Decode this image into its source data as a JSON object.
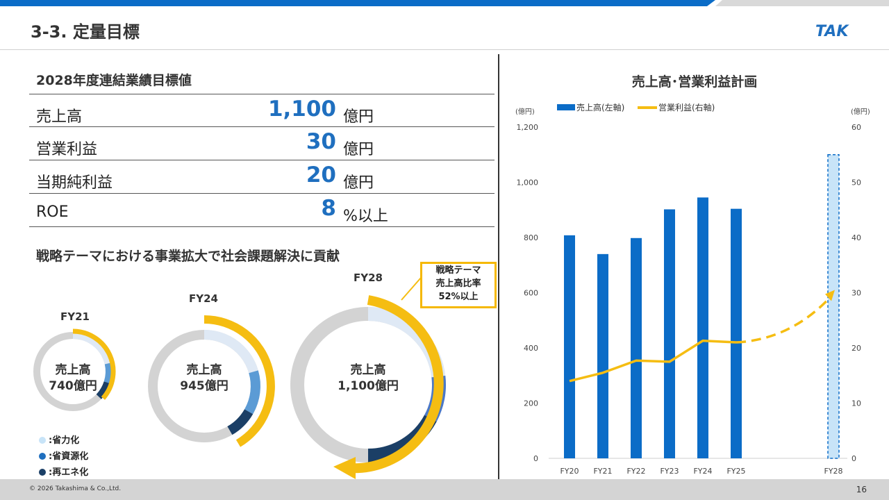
{
  "header": {
    "title": "3-3. 定量目標",
    "logo_text": "TAK"
  },
  "targets": {
    "heading": "2028年度連結業績目標値",
    "rows": [
      {
        "label": "売上高",
        "value": "1,100",
        "unit": "億円"
      },
      {
        "label": "営業利益",
        "value": "30",
        "unit": "億円"
      },
      {
        "label": "当期純利益",
        "value": "20",
        "unit": "億円"
      },
      {
        "label": "ROE",
        "value": "8",
        "unit": "%以上"
      }
    ]
  },
  "themes": {
    "heading": "戦略テーマにおける事業拡大で社会課題解決に貢献",
    "donuts": [
      {
        "year": "FY21",
        "center_line1": "売上高",
        "center_line2": "740億円",
        "revenue": 740
      },
      {
        "year": "FY24",
        "center_line1": "売上高",
        "center_line2": "945億円",
        "revenue": 945
      },
      {
        "year": "FY28",
        "center_line1": "売上高",
        "center_line2": "1,100億円",
        "revenue": 1100
      }
    ],
    "callout": {
      "line1": "戦略テーマ",
      "line2": "売上高比率",
      "line3": "52%以上"
    },
    "legend": [
      {
        "label": ":省力化",
        "color": "#c8e4f8"
      },
      {
        "label": ":省資源化",
        "color": "#1f6fbf"
      },
      {
        "label": ":再エネ化",
        "color": "#1b3f66"
      }
    ]
  },
  "colors": {
    "accent_blue": "#1f6fbf",
    "bar_blue": "#0b6cc7",
    "line_yellow": "#f5bd12",
    "dark_navy": "#1b3f66",
    "light_blue": "#c8e4f8",
    "gray_ring": "#d3d3d3",
    "topbar_blue": "#0b6cc7"
  },
  "chart_data": {
    "type": "bar",
    "title": "売上高･営業利益計画",
    "left_unit": "(億円)",
    "right_unit": "(億円)",
    "categories": [
      "FY20",
      "FY21",
      "FY22",
      "FY23",
      "FY24",
      "FY25",
      "FY28"
    ],
    "ylim_left": [
      0,
      1200
    ],
    "ylim_right": [
      0,
      60
    ],
    "yticks_left": [
      "0",
      "200",
      "400",
      "600",
      "800",
      "1,000",
      "1,200"
    ],
    "yticks_right": [
      "0",
      "10",
      "20",
      "30",
      "40",
      "50",
      "60"
    ],
    "series": [
      {
        "name": "売上高(左軸)",
        "type": "bar",
        "axis": "left",
        "values": [
          808,
          740,
          798,
          902,
          945,
          904,
          1100
        ],
        "plan_from_index": 6
      },
      {
        "name": "営業利益(右軸)",
        "type": "line",
        "axis": "right",
        "values": [
          14,
          15.5,
          17.7,
          17.5,
          21.3,
          21.0,
          30
        ],
        "dashed_from_index": 5
      }
    ],
    "legend_position": "top-left",
    "grid": false
  },
  "footer": {
    "copyright": "© 2026 Takashima & Co.,Ltd.",
    "page": "16"
  }
}
